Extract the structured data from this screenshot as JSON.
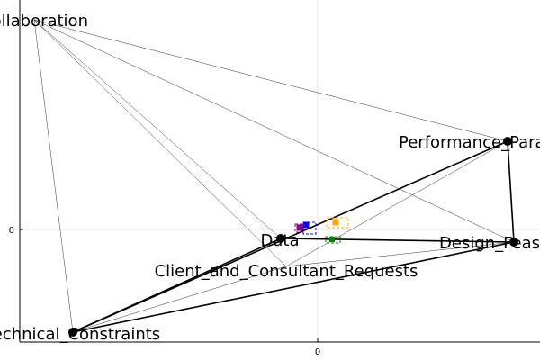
{
  "axes": {
    "x_tick_label": "0",
    "y_tick_label": "0",
    "grid": true
  },
  "graph": {
    "nodes": [
      {
        "id": "collaboration",
        "label": "Collaboration"
      },
      {
        "id": "performance",
        "label": "Performance_Parameters"
      },
      {
        "id": "data",
        "label": "Data"
      },
      {
        "id": "design",
        "label": "Design_Feasibility"
      },
      {
        "id": "requests",
        "label": "Client_and_Consultant_Requests"
      },
      {
        "id": "technical",
        "label": "Technical_Constraints"
      }
    ],
    "edges": [
      {
        "from": "collaboration",
        "to": "performance",
        "weight": "thin"
      },
      {
        "from": "collaboration",
        "to": "design",
        "weight": "thin"
      },
      {
        "from": "collaboration",
        "to": "data",
        "weight": "thin"
      },
      {
        "from": "collaboration",
        "to": "requests",
        "weight": "thin"
      },
      {
        "from": "collaboration",
        "to": "technical",
        "weight": "thin"
      },
      {
        "from": "performance",
        "to": "design",
        "weight": "thick"
      },
      {
        "from": "performance",
        "to": "technical",
        "weight": "thick"
      },
      {
        "from": "performance",
        "to": "requests",
        "weight": "thin"
      },
      {
        "from": "data",
        "to": "design",
        "weight": "thick"
      },
      {
        "from": "data",
        "to": "technical",
        "weight": "thick"
      },
      {
        "from": "design",
        "to": "technical",
        "weight": "thick"
      },
      {
        "from": "design",
        "to": "requests",
        "weight": "thin"
      },
      {
        "from": "technical",
        "to": "requests",
        "weight": "thin"
      }
    ],
    "markers": [
      {
        "name": "marker-blue",
        "color": "#0000ff"
      },
      {
        "name": "marker-purple",
        "color": "#8b008b"
      },
      {
        "name": "marker-orange",
        "color": "#ffa500"
      },
      {
        "name": "marker-green",
        "color": "#008000"
      }
    ]
  },
  "colors": {
    "node": "#000000",
    "edge": "#000000",
    "grid": "#e6e6e6",
    "axis": "#000000"
  }
}
